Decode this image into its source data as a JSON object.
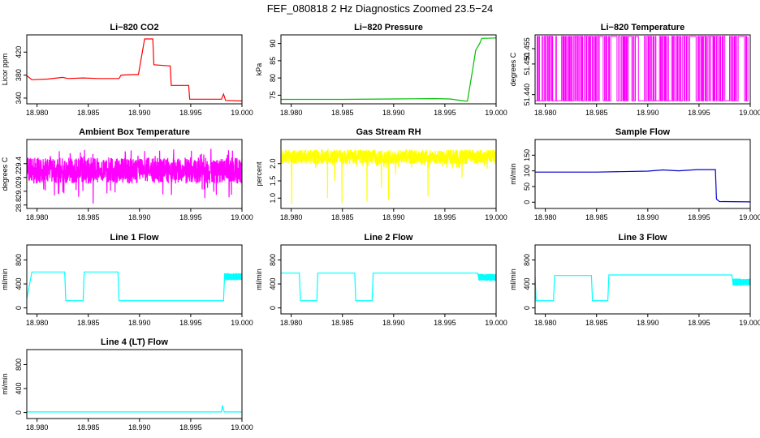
{
  "figure_title": "FEF_080818  2 Hz Diagnostics Zoomed 23.5−24",
  "chart_data": [
    {
      "type": "line",
      "title": "Li−820 CO2",
      "ylabel": "Licor ppm",
      "color": "#ff0000",
      "xlim": [
        18.979,
        19.0
      ],
      "ylim": [
        330,
        450
      ],
      "x_ticks": [
        "18.980",
        "18.985",
        "18.990",
        "18.995",
        "19.000"
      ],
      "y_ticks": [
        "340",
        "380",
        "420"
      ],
      "series": [
        {
          "x": [
            18.979,
            18.9795,
            18.981,
            18.9825,
            18.983,
            18.9845,
            18.986,
            18.988,
            18.9882,
            18.9895,
            18.9899,
            18.9905,
            18.991,
            18.9913,
            18.9914,
            18.993,
            18.9931,
            18.9948,
            18.9949,
            18.998,
            18.9982,
            18.9984,
            19.0
          ],
          "y": [
            379,
            372,
            373,
            376,
            374,
            375,
            374,
            374,
            380,
            381,
            381,
            443,
            443,
            443,
            398,
            396,
            362,
            362,
            338,
            338,
            347,
            336,
            335
          ]
        }
      ]
    },
    {
      "type": "line",
      "title": "Li−820 Pressure",
      "ylabel": "kPa",
      "color": "#00c000",
      "xlim": [
        18.979,
        19.0
      ],
      "ylim": [
        72.5,
        92.5
      ],
      "x_ticks": [
        "18.980",
        "18.985",
        "18.990",
        "18.995",
        "19.000"
      ],
      "y_ticks": [
        "75",
        "80",
        "85",
        "90"
      ],
      "series": [
        {
          "x": [
            18.979,
            18.985,
            18.99,
            18.994,
            18.9955,
            18.997,
            18.9972,
            18.9978,
            18.998,
            18.9984,
            18.9986,
            19.0
          ],
          "y": [
            73.8,
            73.8,
            73.9,
            74.0,
            73.9,
            73.3,
            73.3,
            84,
            88,
            90,
            91.5,
            91.6
          ]
        }
      ]
    },
    {
      "type": "line",
      "title": "Li−820 Temperature",
      "ylabel": "degrees C",
      "color": "#ff00ff",
      "xlim": [
        18.979,
        19.0
      ],
      "ylim": [
        51.437,
        51.4595
      ],
      "x_ticks": [
        "18.980",
        "18.985",
        "18.990",
        "18.995",
        "19.000"
      ],
      "y_ticks": [
        "51.440",
        "51.450",
        "51.455"
      ],
      "series": [
        {
          "pattern": "switching between 51.438 and 51.459"
        }
      ]
    },
    {
      "type": "line",
      "title": "Ambient Box Temperature",
      "ylabel": "degrees C",
      "color": "#ff00ff",
      "xlim": [
        18.979,
        19.0
      ],
      "ylim": [
        28.75,
        29.75
      ],
      "x_ticks": [
        "18.980",
        "18.985",
        "18.990",
        "18.995",
        "19.000"
      ],
      "y_ticks": [
        "28.8",
        "29.0",
        "29.2",
        "29.4"
      ],
      "series": [
        {
          "pattern": "noise band around 29.3, range 28.9–29.6"
        }
      ]
    },
    {
      "type": "line",
      "title": "Gas Stream RH",
      "ylabel": "percent",
      "color": "#ffff00",
      "xlim": [
        18.979,
        19.0
      ],
      "ylim": [
        0.7,
        2.7
      ],
      "x_ticks": [
        "18.980",
        "18.985",
        "18.990",
        "18.995",
        "19.000"
      ],
      "y_ticks": [
        "1.0",
        "1.5",
        "2.0"
      ],
      "series": [
        {
          "pattern": "noise band around 2.2, range 1.9–2.5, occasional dips to 0.8"
        }
      ]
    },
    {
      "type": "line",
      "title": "Sample Flow",
      "ylabel": "ml/min",
      "color": "#0000cc",
      "xlim": [
        18.979,
        19.0
      ],
      "ylim": [
        -20,
        200
      ],
      "x_ticks": [
        "18.980",
        "18.985",
        "18.990",
        "18.995",
        "19.000"
      ],
      "y_ticks": [
        "0",
        "50",
        "100",
        "150"
      ],
      "series": [
        {
          "x": [
            18.979,
            18.985,
            18.99,
            18.9915,
            18.993,
            18.9948,
            18.9966,
            18.9967,
            18.997,
            19.0
          ],
          "y": [
            96,
            96,
            99,
            103,
            100,
            104,
            104,
            10,
            2,
            1
          ]
        }
      ]
    },
    {
      "type": "line",
      "title": "Line 1 Flow",
      "ylabel": "ml/min",
      "color": "#00ffff",
      "xlim": [
        18.979,
        19.0
      ],
      "ylim": [
        -100,
        1050
      ],
      "x_ticks": [
        "18.980",
        "18.985",
        "18.990",
        "18.995",
        "19.000"
      ],
      "y_ticks": [
        "0",
        "400",
        "800"
      ],
      "series": [
        {
          "x": [
            18.979,
            18.9795,
            18.9827,
            18.9828,
            18.9845,
            18.9846,
            18.9879,
            18.988,
            18.9982,
            18.9983,
            19.0
          ],
          "y": [
            150,
            600,
            600,
            120,
            120,
            600,
            600,
            120,
            120,
            520,
            520
          ]
        }
      ]
    },
    {
      "type": "line",
      "title": "Line 2 Flow",
      "ylabel": "ml/min",
      "color": "#00ffff",
      "xlim": [
        18.979,
        19.0
      ],
      "ylim": [
        -100,
        1050
      ],
      "x_ticks": [
        "18.980",
        "18.985",
        "18.990",
        "18.995",
        "19.000"
      ],
      "y_ticks": [
        "0",
        "400",
        "800"
      ],
      "series": [
        {
          "x": [
            18.979,
            18.9808,
            18.9809,
            18.9825,
            18.9826,
            18.9862,
            18.9863,
            18.9879,
            18.988,
            18.9982,
            18.9983,
            19.0
          ],
          "y": [
            580,
            580,
            120,
            120,
            580,
            580,
            120,
            120,
            580,
            580,
            510,
            510
          ]
        }
      ]
    },
    {
      "type": "line",
      "title": "Line 3 Flow",
      "ylabel": "ml/min",
      "color": "#00ffff",
      "xlim": [
        18.979,
        19.0
      ],
      "ylim": [
        -100,
        1050
      ],
      "x_ticks": [
        "18.980",
        "18.985",
        "18.990",
        "18.995",
        "19.000"
      ],
      "y_ticks": [
        "0",
        "400",
        "800"
      ],
      "series": [
        {
          "x": [
            18.979,
            18.9791,
            18.9792,
            18.9808,
            18.9809,
            18.9845,
            18.9846,
            18.9861,
            18.9862,
            18.9982,
            18.9983,
            19.0
          ],
          "y": [
            520,
            120,
            120,
            120,
            540,
            540,
            120,
            120,
            550,
            550,
            430,
            430
          ]
        }
      ]
    },
    {
      "type": "line",
      "title": "Line 4 (LT) Flow",
      "ylabel": "ml/min",
      "color": "#00ffff",
      "xlim": [
        18.979,
        19.0
      ],
      "ylim": [
        -100,
        1050
      ],
      "x_ticks": [
        "18.980",
        "18.985",
        "18.990",
        "18.995",
        "19.000"
      ],
      "y_ticks": [
        "0",
        "400",
        "800"
      ],
      "series": [
        {
          "x": [
            18.979,
            18.998,
            18.9981,
            18.9982,
            18.9983,
            19.0
          ],
          "y": [
            10,
            10,
            120,
            40,
            10,
            10
          ]
        }
      ]
    }
  ]
}
